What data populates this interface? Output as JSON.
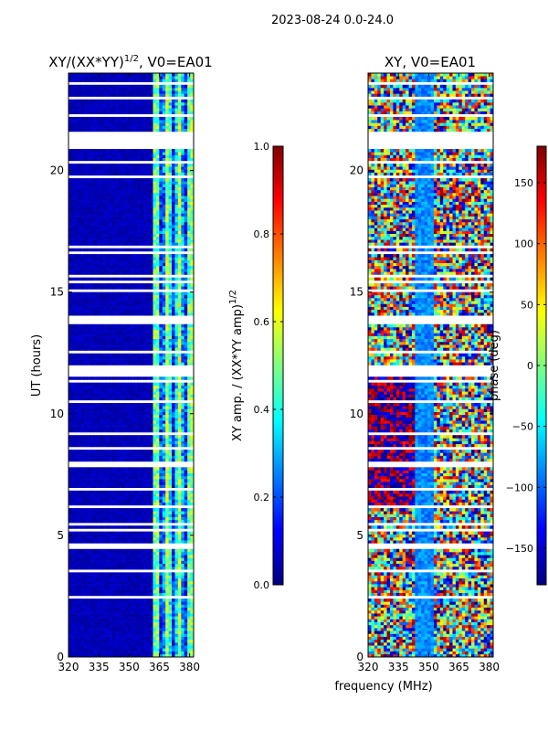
{
  "figure": {
    "suptitle": "2023-08-24 0.0-24.0"
  },
  "colors": {
    "jet": [
      "#00007f",
      "#0000ff",
      "#007fff",
      "#00ffff",
      "#7fff7f",
      "#ffff00",
      "#ff7f00",
      "#ff0000",
      "#7f0000"
    ],
    "gap": "#ffffff",
    "deep": "#00008f"
  },
  "chart_data": [
    {
      "type": "heatmap",
      "title": "XY/(XX*YY)^{1/2}, V0=EA01",
      "title_main": "XY/(XX*YY)",
      "title_exp": "1/2",
      "title_tail": ", V0=EA01",
      "xlabel": "",
      "ylabel": "UT (hours)",
      "xlim": [
        320,
        382
      ],
      "ylim": [
        0,
        24
      ],
      "xticks": [
        320,
        335,
        350,
        365,
        380
      ],
      "yticks": [
        0,
        5,
        10,
        15,
        20
      ],
      "colorbar": {
        "label": "XY amp. / (XX*YY amp)^{1/2}",
        "label_main": "XY amp. / (XX*YY amp)",
        "label_exp": "1/2",
        "range": [
          0.0,
          1.0
        ],
        "ticks": [
          "0.0",
          "0.2",
          "0.4",
          "0.6",
          "0.8",
          "1.0"
        ],
        "tick_values": [
          0.0,
          0.2,
          0.4,
          0.6,
          0.8,
          1.0
        ]
      },
      "note": "Amplitude near 0 across most of band; elevated (~0.3-0.6) between ~362 and ~382 MHz in vertical stripes; frequent time gaps (blank rows)."
    },
    {
      "type": "heatmap",
      "title": "XY, V0=EA01",
      "xlabel": "frequency (MHz)",
      "ylabel": "",
      "xlim": [
        320,
        382
      ],
      "ylim": [
        0,
        24
      ],
      "xticks": [
        320,
        335,
        350,
        365,
        380
      ],
      "yticks": [
        0,
        5,
        10,
        15,
        20
      ],
      "colorbar": {
        "label": "phase (deg)",
        "range": [
          -180,
          180
        ],
        "ticks": [
          "−150",
          "−100",
          "−50",
          "0",
          "50",
          "100",
          "150"
        ],
        "tick_values": [
          -150,
          -100,
          -50,
          0,
          50,
          100,
          150
        ]
      },
      "note": "Phase varies widely with wraps; blue band near 345-352 MHz; same time gaps as left panel."
    }
  ]
}
